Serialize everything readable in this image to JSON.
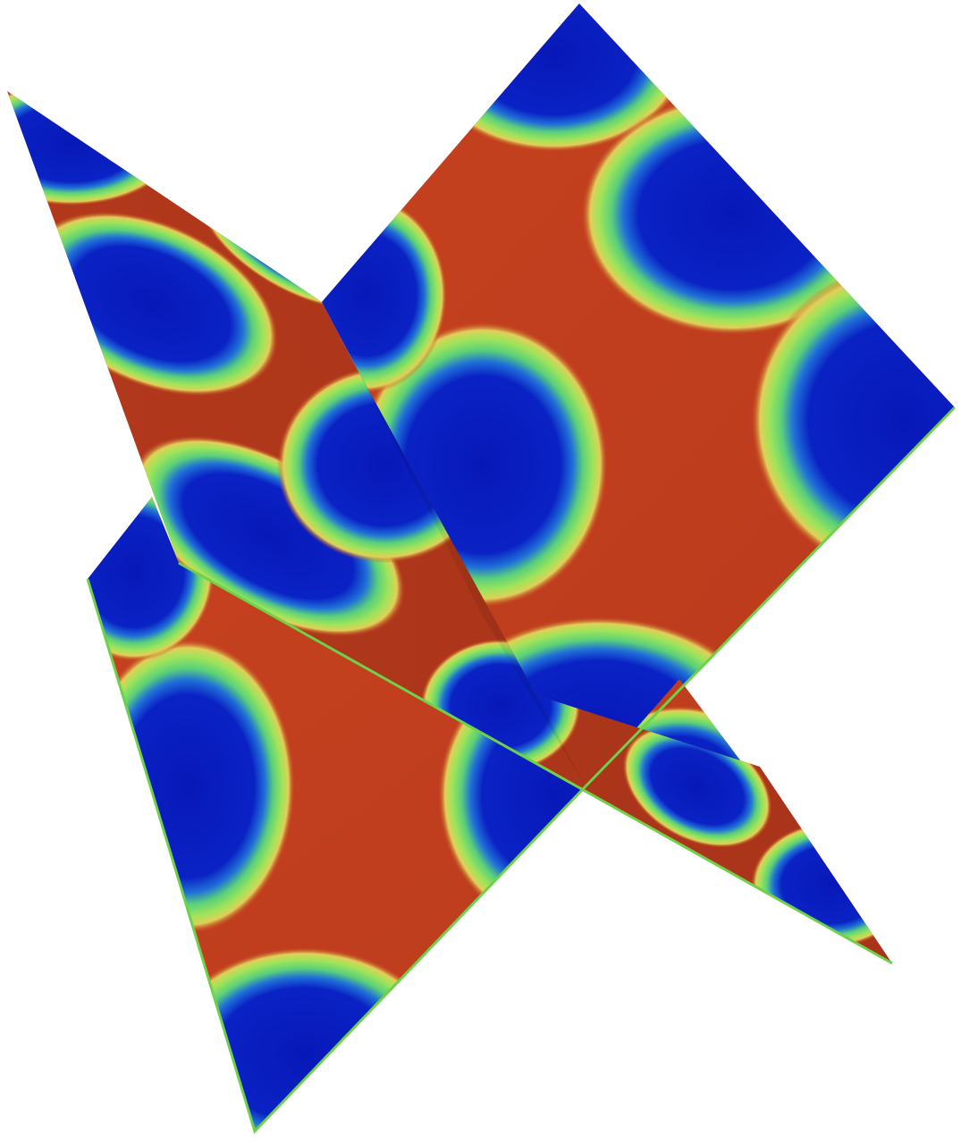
{
  "scene": {
    "kind": "3d-slice-render",
    "background": "#ffffff",
    "colormap": {
      "name": "rainbow",
      "low": "#0a1fbf",
      "mid": "#7ed957",
      "high": "#c23b1c"
    },
    "slices": [
      {
        "name": "slice-back"
      },
      {
        "name": "slice-diagonal"
      },
      {
        "name": "slice-front"
      }
    ],
    "edge_color": "#6fd04a"
  }
}
